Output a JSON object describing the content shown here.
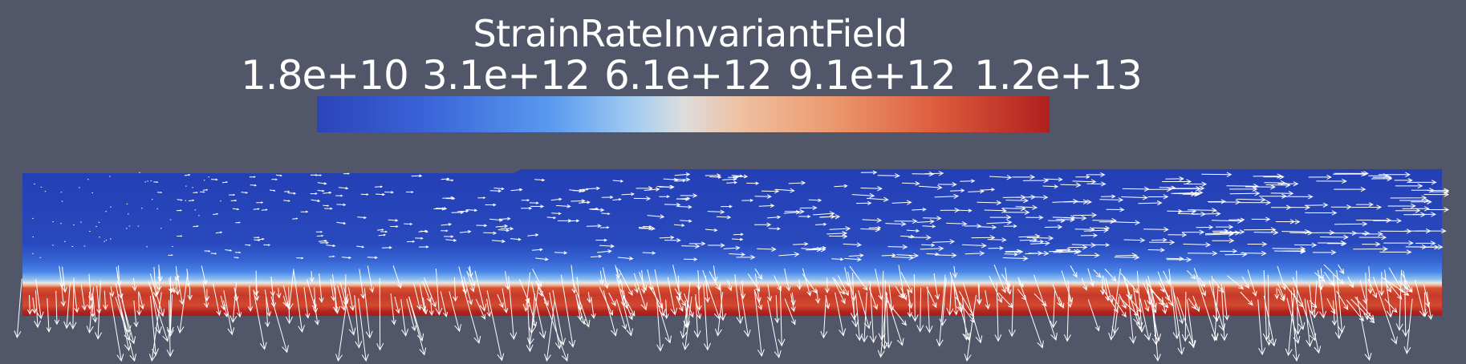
{
  "colorbar": {
    "title": "StrainRateInvariantField",
    "ticks": [
      "1.8e+10",
      "3.1e+12",
      "6.1e+12",
      "9.1e+12",
      "1.2e+13"
    ],
    "colormap": [
      "#2a44b8",
      "#3a64d8",
      "#5a9af0",
      "#a8cff0",
      "#dddddd",
      "#efc0a0",
      "#ec9a70",
      "#dc5a3c",
      "#b01e1e"
    ]
  },
  "background_color": "#525669",
  "glyph_color": "#ffffff"
}
